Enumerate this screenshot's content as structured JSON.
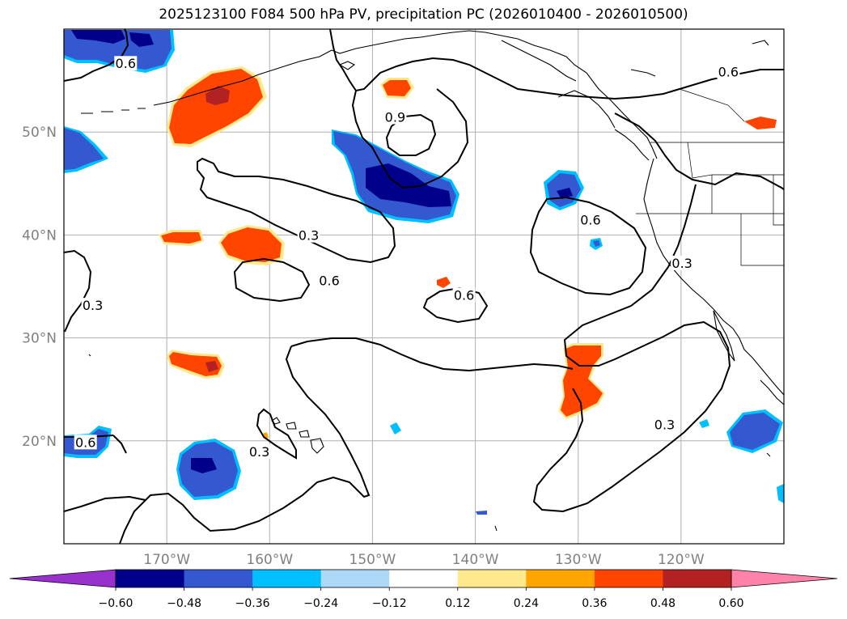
{
  "title": "2025123100 F084 500 hPa PV, precipitation PC (2026010400 - 2026010500)",
  "map": {
    "lon_range": [
      -180,
      -110
    ],
    "lat_range": [
      10,
      60
    ],
    "lat_ticks": [
      {
        "value": 50,
        "label": "50°N"
      },
      {
        "value": 40,
        "label": "40°N"
      },
      {
        "value": 30,
        "label": "30°N"
      },
      {
        "value": 20,
        "label": "20°N"
      }
    ],
    "lon_ticks": [
      {
        "value": -170,
        "label": "170°W"
      },
      {
        "value": -160,
        "label": "160°W"
      },
      {
        "value": -150,
        "label": "150°W"
      },
      {
        "value": -140,
        "label": "140°W"
      },
      {
        "value": -130,
        "label": "130°W"
      },
      {
        "value": -120,
        "label": "120°W"
      }
    ],
    "grid": true,
    "contour_labels": [
      {
        "text": "0.6",
        "lon": -174,
        "lat": 56.6
      },
      {
        "text": "0.6",
        "lon": -115.4,
        "lat": 55.8
      },
      {
        "text": "0.9",
        "lon": -147.8,
        "lat": 51.4
      },
      {
        "text": "0.6",
        "lon": -128.8,
        "lat": 41.4
      },
      {
        "text": "0.3",
        "lon": -156.2,
        "lat": 39.9
      },
      {
        "text": "0.3",
        "lon": -119.9,
        "lat": 37.2
      },
      {
        "text": "0.6",
        "lon": -154.2,
        "lat": 35.5
      },
      {
        "text": "0.3",
        "lon": -177.2,
        "lat": 33.1
      },
      {
        "text": "0.6",
        "lon": -141.1,
        "lat": 34.1
      },
      {
        "text": "0.3",
        "lon": -121.6,
        "lat": 21.5
      },
      {
        "text": "0.6",
        "lon": -177.9,
        "lat": 19.8
      },
      {
        "text": "0.3",
        "lon": -161.0,
        "lat": 18.9
      }
    ]
  },
  "colorbar": {
    "ticks": [
      "−0.60",
      "−0.48",
      "−0.36",
      "−0.24",
      "−0.12",
      "0.12",
      "0.24",
      "0.36",
      "0.48",
      "0.60"
    ],
    "colors": [
      "#9932cc",
      "#00008b",
      "#3458d0",
      "#00bfff",
      "#add8f7",
      "#ffffff",
      "#ffe98c",
      "#ffa500",
      "#ff4500",
      "#b22222",
      "#ff82ab"
    ]
  }
}
